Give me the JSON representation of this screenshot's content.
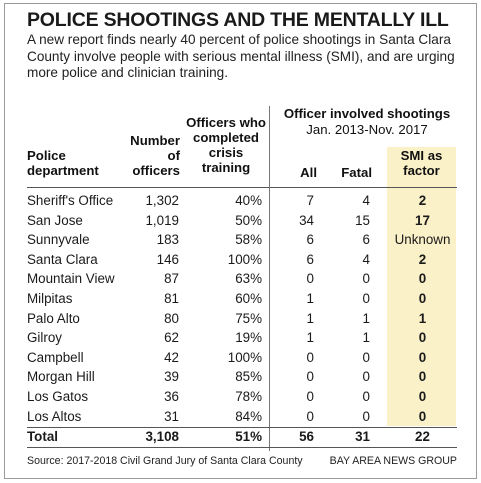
{
  "title": "POLICE SHOOTINGS AND THE MENTALLY ILL",
  "subtitle": "A new report finds nearly 40 percent of police shootings in Santa Clara County involve people with serious mental illness (SMI), and are urging more police and clinician training.",
  "headers": {
    "dept": "Police department",
    "officers": "Number of officers",
    "training": "Officers who completed crisis training",
    "group": "Officer involved shootings",
    "group_range": "Jan. 2013-Nov. 2017",
    "all": "All",
    "fatal": "Fatal",
    "smi": "SMI as factor"
  },
  "chart_data": {
    "type": "table",
    "columns": [
      "Police department",
      "Number of officers",
      "Officers who completed crisis training",
      "All",
      "Fatal",
      "SMI as factor"
    ],
    "rows": [
      [
        "Sheriff's Office",
        "1,302",
        "40%",
        "7",
        "4",
        "2"
      ],
      [
        "San Jose",
        "1,019",
        "50%",
        "34",
        "15",
        "17"
      ],
      [
        "Sunnyvale",
        "183",
        "58%",
        "6",
        "6",
        "Unknown"
      ],
      [
        "Santa Clara",
        "146",
        "100%",
        "6",
        "4",
        "2"
      ],
      [
        "Mountain View",
        "87",
        "63%",
        "0",
        "0",
        "0"
      ],
      [
        "Milpitas",
        "81",
        "60%",
        "1",
        "0",
        "0"
      ],
      [
        "Palo Alto",
        "80",
        "75%",
        "1",
        "1",
        "1"
      ],
      [
        "Gilroy",
        "62",
        "19%",
        "1",
        "1",
        "0"
      ],
      [
        "Campbell",
        "42",
        "100%",
        "0",
        "0",
        "0"
      ],
      [
        "Morgan Hill",
        "39",
        "85%",
        "0",
        "0",
        "0"
      ],
      [
        "Los Gatos",
        "36",
        "78%",
        "0",
        "0",
        "0"
      ],
      [
        "Los Altos",
        "31",
        "84%",
        "0",
        "0",
        "0"
      ]
    ],
    "total": [
      "Total",
      "3,108",
      "51%",
      "56",
      "31",
      "22"
    ]
  },
  "colors": {
    "smi_highlight": "#fbf1c8"
  },
  "source": "Source: 2017-2018 Civil Grand Jury of Santa Clara County",
  "brand": "BAY AREA NEWS GROUP"
}
